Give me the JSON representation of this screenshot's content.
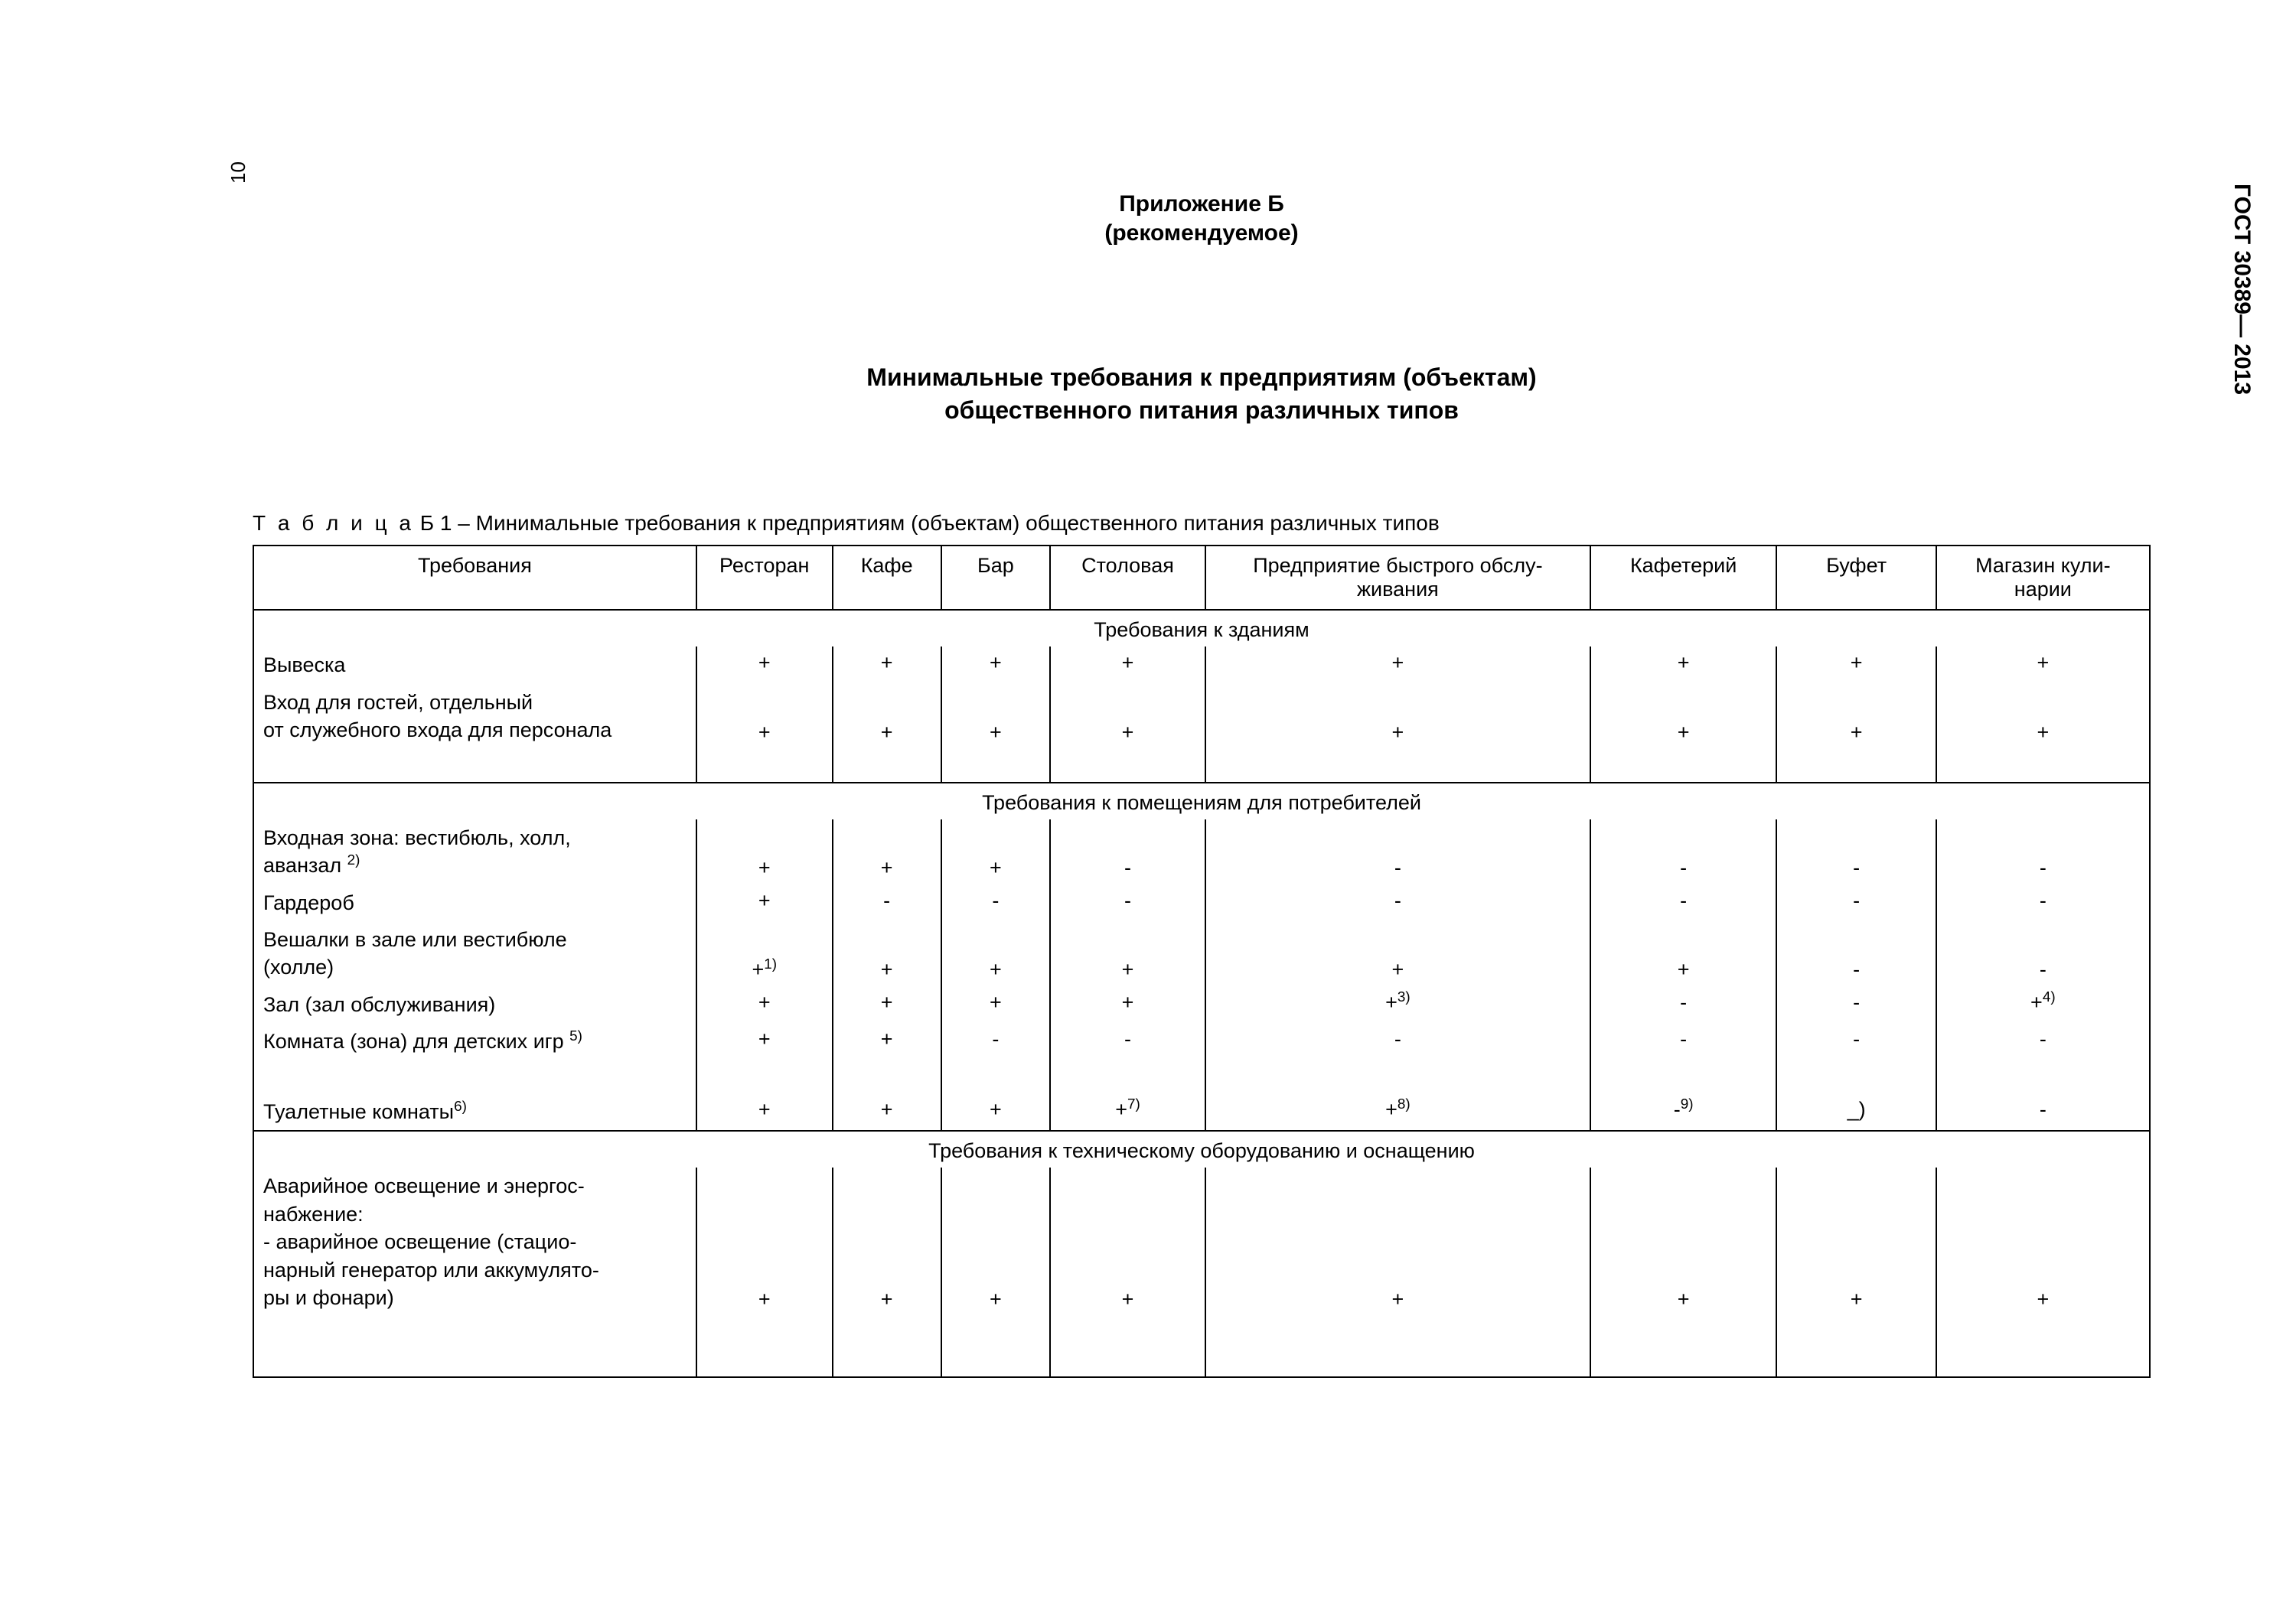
{
  "page_number": "10",
  "doc_code": "ГОСТ 30389— 2013",
  "annex_title": "Приложение Б",
  "annex_subtitle": "(рекомендуемое)",
  "main_title_line1": "Минимальные требования к предприятиям (объектам)",
  "main_title_line2": "общественного питания различных типов",
  "table_caption_prefix": "Т а б л и ц а",
  "table_caption_rest": "  Б 1 – Минимальные требования к предприятиям (объектам) общественного питания различных типов",
  "columns": [
    "Требования",
    "Ресторан",
    "Кафе",
    "Бар",
    "Столовая",
    "Предприятие быстрого обслуживания",
    "Кафетерий",
    "Буфет",
    "Магазин кулинарии"
  ],
  "col_fast_line1": "Предприятие быстрого обслу-",
  "col_fast_line2": "живания",
  "col_shop_line1": "Магазин кули-",
  "col_shop_line2": "нарии",
  "sections": [
    {
      "title": "Требования к зданиям",
      "rows": [
        {
          "label": "Вывеска",
          "vals": [
            "+",
            "+",
            "+",
            "+",
            "+",
            "+",
            "+",
            "+"
          ]
        },
        {
          "label_lines": [
            "Вход для гостей, отдельный",
            "от служебного входа для персонала"
          ],
          "vals": [
            "+",
            "+",
            "+",
            "+",
            "+",
            "+",
            "+",
            "+"
          ],
          "val_align": "bottom",
          "trailing_space": true
        }
      ]
    },
    {
      "title": "Требования к помещениям для потребителей",
      "rows": [
        {
          "label_lines": [
            "Входная зона: вестибюль, холл,",
            "аванзал 2)"
          ],
          "fn_label": "2",
          "vals": [
            "+",
            "+",
            "+",
            "-",
            "-",
            "-",
            "-",
            "-"
          ],
          "val_align": "bottom"
        },
        {
          "label": "Гардероб",
          "vals": [
            "+",
            "-",
            "-",
            "-",
            "-",
            "-",
            "-",
            "-"
          ]
        },
        {
          "label_lines": [
            "Вешалки в зале или вестибюле",
            "(холле)"
          ],
          "vals_fn": [
            [
              "+",
              "1"
            ],
            [
              "+",
              ""
            ],
            [
              "+",
              ""
            ],
            [
              "+",
              ""
            ],
            [
              "+",
              ""
            ],
            [
              "+",
              ""
            ],
            [
              "-",
              ""
            ],
            [
              "-",
              ""
            ]
          ],
          "val_align": "bottom"
        },
        {
          "label": "Зал (зал обслуживания)",
          "vals_fn": [
            [
              "+",
              ""
            ],
            [
              "+",
              ""
            ],
            [
              "+",
              ""
            ],
            [
              "+",
              ""
            ],
            [
              "+",
              "3"
            ],
            [
              "-",
              ""
            ],
            [
              "-",
              ""
            ],
            [
              "+",
              "4"
            ]
          ]
        },
        {
          "label": "Комната (зона) для детских игр 5)",
          "fn_label": "5",
          "vals": [
            "+",
            "+",
            "-",
            "-",
            "-",
            "-",
            "-",
            "-"
          ],
          "trailing_space": true
        },
        {
          "label": "Туалетные комнаты6)",
          "fn_label": "6",
          "vals_fn": [
            [
              "+",
              ""
            ],
            [
              "+",
              ""
            ],
            [
              "+",
              ""
            ],
            [
              "+",
              "7"
            ],
            [
              "+",
              "8"
            ],
            [
              "-",
              "9"
            ],
            [
              "_)",
              ""
            ],
            [
              "-",
              ""
            ]
          ]
        }
      ]
    },
    {
      "title": "Требования к техническому оборудованию и оснащению",
      "rows": [
        {
          "label_lines": [
            " Аварийное освещение и энергоснабжение:",
            " - аварийное освещение (стационарный генератор или аккумуляторы и фонари)"
          ],
          "multiline_custom": true,
          "vals": [
            "+",
            "+",
            "+",
            "+",
            "+",
            "+",
            "+",
            "+"
          ],
          "val_align": "bottom",
          "extra_height": true
        }
      ]
    }
  ]
}
